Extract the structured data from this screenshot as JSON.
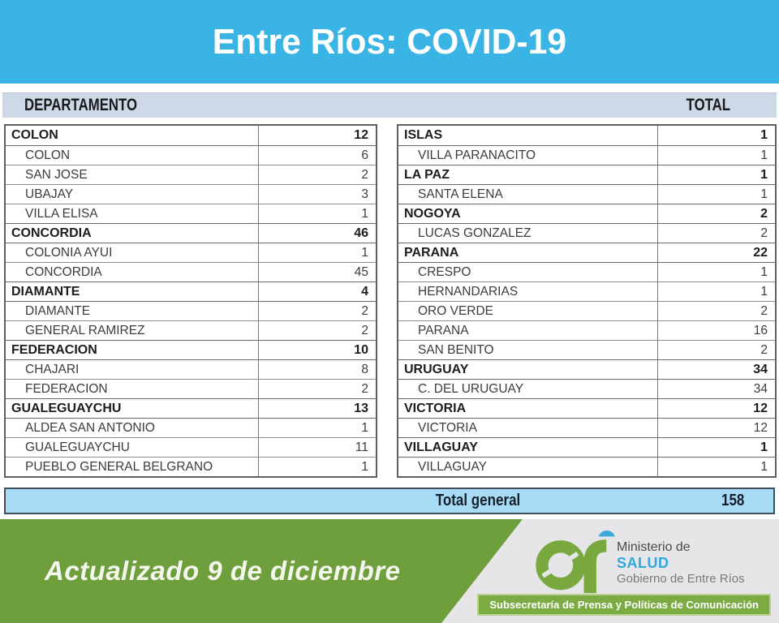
{
  "title": "Entre Ríos: COVID-19",
  "columns": {
    "department_label": "DEPARTAMENTO",
    "total_label": "TOTAL"
  },
  "tables": {
    "left_rows": [
      {
        "label": "COLON",
        "value": "12",
        "header": true
      },
      {
        "label": "COLON",
        "value": "6",
        "header": false
      },
      {
        "label": "SAN JOSE",
        "value": "2",
        "header": false
      },
      {
        "label": "UBAJAY",
        "value": "3",
        "header": false
      },
      {
        "label": "VILLA ELISA",
        "value": "1",
        "header": false
      },
      {
        "label": "CONCORDIA",
        "value": "46",
        "header": true
      },
      {
        "label": "COLONIA AYUI",
        "value": "1",
        "header": false
      },
      {
        "label": "CONCORDIA",
        "value": "45",
        "header": false
      },
      {
        "label": "DIAMANTE",
        "value": "4",
        "header": true
      },
      {
        "label": "DIAMANTE",
        "value": "2",
        "header": false
      },
      {
        "label": "GENERAL RAMIREZ",
        "value": "2",
        "header": false
      },
      {
        "label": "FEDERACION",
        "value": "10",
        "header": true
      },
      {
        "label": "CHAJARI",
        "value": "8",
        "header": false
      },
      {
        "label": "FEDERACION",
        "value": "2",
        "header": false
      },
      {
        "label": "GUALEGUAYCHU",
        "value": "13",
        "header": true
      },
      {
        "label": "ALDEA SAN ANTONIO",
        "value": "1",
        "header": false
      },
      {
        "label": "GUALEGUAYCHU",
        "value": "11",
        "header": false
      },
      {
        "label": "PUEBLO GENERAL BELGRANO",
        "value": "1",
        "header": false
      }
    ],
    "right_rows": [
      {
        "label": "ISLAS",
        "value": "1",
        "header": true
      },
      {
        "label": "VILLA PARANACITO",
        "value": "1",
        "header": false
      },
      {
        "label": "LA PAZ",
        "value": "1",
        "header": true
      },
      {
        "label": "SANTA ELENA",
        "value": "1",
        "header": false
      },
      {
        "label": "NOGOYA",
        "value": "2",
        "header": true
      },
      {
        "label": "LUCAS GONZALEZ",
        "value": "2",
        "header": false
      },
      {
        "label": "PARANA",
        "value": "22",
        "header": true
      },
      {
        "label": "CRESPO",
        "value": "1",
        "header": false
      },
      {
        "label": "HERNANDARIAS",
        "value": "1",
        "header": false
      },
      {
        "label": "ORO VERDE",
        "value": "2",
        "header": false
      },
      {
        "label": "PARANA",
        "value": "16",
        "header": false
      },
      {
        "label": "SAN BENITO",
        "value": "2",
        "header": false
      },
      {
        "label": "URUGUAY",
        "value": "34",
        "header": true
      },
      {
        "label": "C. DEL URUGUAY",
        "value": "34",
        "header": false
      },
      {
        "label": "VICTORIA",
        "value": "12",
        "header": true
      },
      {
        "label": "VICTORIA",
        "value": "12",
        "header": false
      },
      {
        "label": "VILLAGUAY",
        "value": "1",
        "header": true
      },
      {
        "label": "VILLAGUAY",
        "value": "1",
        "header": false
      }
    ]
  },
  "total": {
    "label": "Total general",
    "value": "158"
  },
  "footer": {
    "updated": "Actualizado 9 de diciembre",
    "ministry_line1": "Ministerio de",
    "ministry_line2": "SALUD",
    "ministry_line3": "Gobierno de Entre Ríos",
    "ribbon": "Subsecretaría de Prensa y Políticas de Comunicación"
  },
  "colors": {
    "banner_blue": "#3ab4e4",
    "header_bar_blue": "#cdd9e7",
    "total_row_blue": "#a8dcf5",
    "band_green": "#6f9e3c",
    "ribbon_green": "#7cab44",
    "salud_cyan": "#2fa9dc",
    "logo_green": "#78a83e",
    "logo_blue": "#3aa8d8",
    "footer_gray": "#e6e6e8"
  }
}
